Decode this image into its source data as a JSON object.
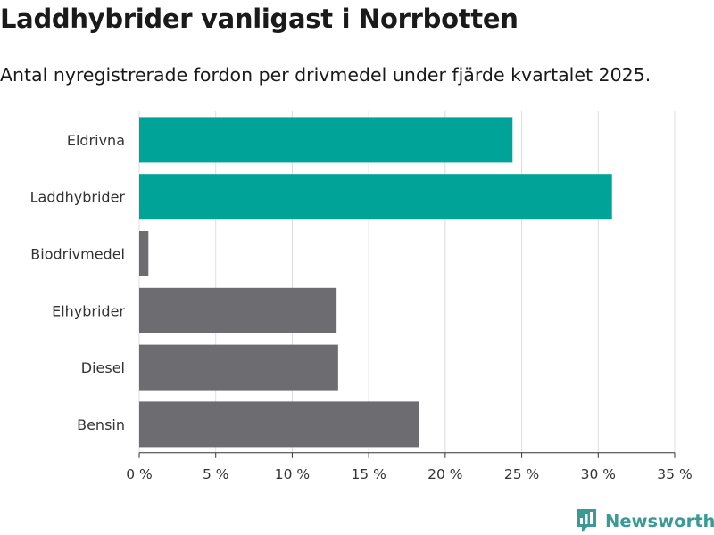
{
  "header": {
    "title": "Laddhybrider vanligast i Norrbotten",
    "subtitle": "Antal nyregistrerade fordon per drivmedel under fjärde kvartalet 2025."
  },
  "branding": {
    "logo_text": "Newsworthy",
    "logo_icon": "bar-chart-icon",
    "logo_color": "#3a9a96"
  },
  "chart_data": {
    "type": "bar",
    "orientation": "horizontal",
    "categories": [
      "Eldrivna",
      "Laddhybrider",
      "Biodrivmedel",
      "Elhybrider",
      "Diesel",
      "Bensin"
    ],
    "values": [
      24.4,
      30.9,
      0.6,
      12.9,
      13.0,
      18.3
    ],
    "colors": [
      "#00a398",
      "#00a398",
      "#6d6c70",
      "#6d6c70",
      "#6d6c70",
      "#6d6c70"
    ],
    "xlim": [
      0,
      35
    ],
    "xticks": [
      0,
      5,
      10,
      15,
      20,
      25,
      30,
      35
    ],
    "tick_labels": [
      "0 %",
      "5 %",
      "10 %",
      "15 %",
      "20 %",
      "25 %",
      "30 %",
      "35 %"
    ],
    "grid": true,
    "xlabel": "",
    "ylabel": ""
  }
}
